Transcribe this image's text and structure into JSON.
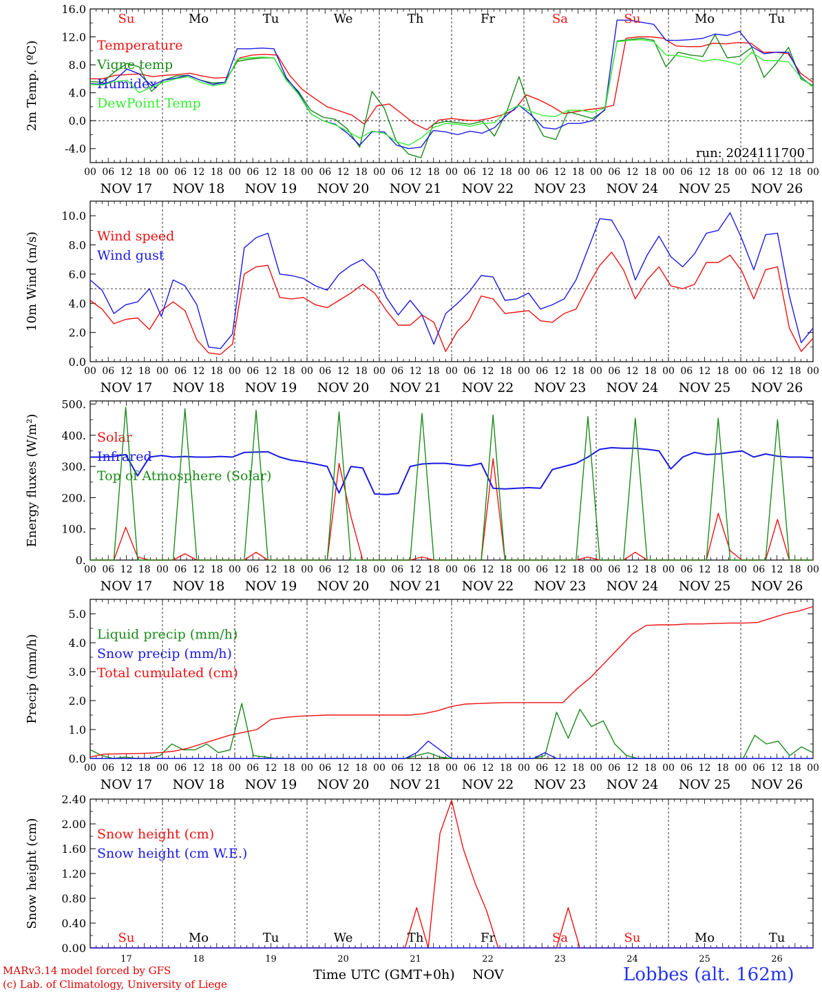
{
  "footer": {
    "model_line": "MARv3.14 model forced by GFS",
    "copyright_line": "(c) Lab. of Climatology, University of Liege",
    "time_label": "Time UTC (GMT+0h)",
    "nov_label": "NOV",
    "station": "Lobbes (alt. 162m)"
  },
  "days": [
    {
      "abbr": "Su",
      "date": "NOV 17",
      "num": "17",
      "weekend": true
    },
    {
      "abbr": "Mo",
      "date": "NOV 18",
      "num": "18",
      "weekend": false
    },
    {
      "abbr": "Tu",
      "date": "NOV 19",
      "num": "19",
      "weekend": false
    },
    {
      "abbr": "We",
      "date": "NOV 20",
      "num": "20",
      "weekend": false
    },
    {
      "abbr": "Th",
      "date": "NOV 21",
      "num": "21",
      "weekend": false
    },
    {
      "abbr": "Fr",
      "date": "NOV 22",
      "num": "22",
      "weekend": false
    },
    {
      "abbr": "Sa",
      "date": "NOV 23",
      "num": "23",
      "weekend": true
    },
    {
      "abbr": "Su",
      "date": "NOV 24",
      "num": "24",
      "weekend": true
    },
    {
      "abbr": "Mo",
      "date": "NOV 25",
      "num": "25",
      "weekend": false
    },
    {
      "abbr": "Tu",
      "date": "NOV 26",
      "num": "26",
      "weekend": false
    }
  ],
  "hour_ticks": [
    "00",
    "06",
    "12",
    "18"
  ],
  "colors": {
    "red": "#ee1111",
    "green": "#1a8a1a",
    "blue": "#1a1ae6",
    "lightgreen": "#33ee33",
    "weekend": "#ee1111",
    "weekday": "#000000"
  },
  "chart_data": [
    {
      "id": "temp",
      "type": "line",
      "ylabel": "2m Temp. (ºC)",
      "ylim": [
        -6,
        16
      ],
      "yticks": [
        -4,
        0,
        4,
        8,
        12,
        16
      ],
      "yticklabels": [
        "-4.0",
        "0.0",
        "4.0",
        "8.0",
        "12.0",
        "16.0"
      ],
      "ref_line": 0,
      "show_days": true,
      "run_label": "run: 2024111700",
      "x_hours_step": 6,
      "series": [
        {
          "name": "Temperature",
          "color": "red",
          "values": [
            6,
            6,
            6.5,
            6.6,
            6.7,
            6.3,
            6.5,
            6.6,
            6.8,
            6.4,
            6.1,
            6.2,
            9,
            9.4,
            9.5,
            9.4,
            6.5,
            4.5,
            3.2,
            2,
            1.4,
            0.8,
            -0.5,
            2.1,
            2.4,
            1,
            -0.4,
            -1.3,
            0.1,
            0.3,
            0.1,
            0,
            0.3,
            0.8,
            1.5,
            3.7,
            3,
            2.1,
            1,
            1.3,
            1.6,
            1.8,
            2.2,
            11.8,
            12,
            12,
            11.8,
            10.7,
            10.6,
            10.6,
            11.1,
            11,
            11.2,
            11.1,
            9.8,
            9.8,
            9.6,
            6.8,
            5.5
          ]
        },
        {
          "name": "Vigne temp",
          "color": "green",
          "values": [
            5.6,
            5.5,
            7,
            8.2,
            7.7,
            4.2,
            5.8,
            6.4,
            6.5,
            5.8,
            5.4,
            5.5,
            8.5,
            8.8,
            9,
            9,
            6,
            4.2,
            1.5,
            0.5,
            0.2,
            -1.2,
            -3.8,
            4.2,
            1.8,
            -3,
            -4.8,
            -5.3,
            -0.5,
            -0.1,
            -0.3,
            -0.5,
            -0.1,
            -2.2,
            1.3,
            6.3,
            1,
            -2.2,
            -2.7,
            1.3,
            0.8,
            0.3,
            1.5,
            11.4,
            11.6,
            11.8,
            11.5,
            7.7,
            9.8,
            9.4,
            9.2,
            12.3,
            9,
            9.2,
            10.5,
            6.2,
            8.2,
            10.5,
            6,
            5
          ]
        },
        {
          "name": "Humidex",
          "color": "blue",
          "values": [
            5.3,
            5.2,
            5.8,
            7.4,
            6.7,
            5,
            5.8,
            6.1,
            6.5,
            5.8,
            5.2,
            5.5,
            10.3,
            10.3,
            10.4,
            10.3,
            6.2,
            4,
            1,
            0,
            -0.5,
            -1.8,
            -3.5,
            -1.6,
            -1.6,
            -3.5,
            -4,
            -3.8,
            -1.4,
            -1.6,
            -2,
            -1.5,
            -1.8,
            -1,
            0.8,
            2.2,
            0.8,
            -1,
            -1.2,
            -0.4,
            -0.4,
            0,
            1.6,
            14.4,
            14.4,
            14.1,
            13.8,
            11.5,
            11.5,
            11.6,
            11.8,
            12.4,
            12.2,
            12.8,
            10.6,
            9.6,
            9.8,
            9.8,
            6.3,
            4.8
          ]
        },
        {
          "name": "DewPoint Temp",
          "color": "lightgreen",
          "values": [
            5.2,
            5.1,
            5.6,
            5.8,
            4,
            4.8,
            5.5,
            6,
            6.3,
            5.5,
            5,
            5.3,
            8.8,
            9,
            9.1,
            9,
            5.8,
            3.8,
            1,
            0,
            -0.6,
            -1.5,
            -2.5,
            -1.5,
            -1.8,
            -3,
            -3.5,
            -2.5,
            -1,
            -0.4,
            -0.5,
            -0.8,
            -0.4,
            -0.3,
            1.4,
            2.2,
            1.3,
            0.7,
            0.6,
            1.5,
            1.5,
            1.2,
            1.8,
            11.3,
            11.5,
            11.6,
            11.3,
            9.4,
            9.3,
            9,
            8.5,
            8.8,
            8.5,
            8,
            9.8,
            8.6,
            8.6,
            8.4,
            6.2,
            4.8
          ]
        }
      ]
    },
    {
      "id": "wind",
      "type": "line",
      "ylabel": "10m Wind (m/s)",
      "ylim": [
        0,
        11
      ],
      "yticks": [
        0,
        2,
        4,
        6,
        8,
        10
      ],
      "yticklabels": [
        "0.0",
        "2.0",
        "4.0",
        "6.0",
        "8.0",
        "10.0"
      ],
      "ref_line": 5,
      "show_days": false,
      "x_hours_step": 6,
      "series": [
        {
          "name": "Wind speed",
          "color": "red",
          "values": [
            4.2,
            3.6,
            2.6,
            2.9,
            3,
            2.2,
            3.5,
            4.1,
            3.5,
            1.5,
            0.6,
            0.5,
            1.2,
            6,
            6.5,
            6.6,
            4.4,
            4.3,
            4.4,
            3.9,
            3.7,
            4.2,
            4.7,
            5.3,
            4.7,
            3.5,
            2.5,
            2.5,
            3.2,
            2.7,
            0.7,
            2.1,
            2.9,
            4.5,
            4.3,
            3.3,
            3.4,
            3.5,
            2.8,
            2.7,
            3.3,
            3.6,
            5.2,
            6.6,
            7.5,
            6.3,
            4.3,
            5.6,
            6.5,
            5.2,
            5,
            5.3,
            6.8,
            6.8,
            7.3,
            6.2,
            4.3,
            6.3,
            6.5,
            2.3,
            0.7,
            1.6
          ]
        },
        {
          "name": "Wind gust",
          "color": "blue",
          "values": [
            5.6,
            4.9,
            3.3,
            3.9,
            4.1,
            5,
            3.1,
            5.6,
            5.2,
            3.9,
            1,
            0.9,
            1.9,
            7.8,
            8.5,
            8.8,
            6,
            5.9,
            5.7,
            5.2,
            4.9,
            6,
            6.6,
            7,
            6.2,
            4.4,
            3.2,
            4.2,
            3.2,
            1.2,
            3.3,
            4,
            4.8,
            5.9,
            5.8,
            4.2,
            4.3,
            4.7,
            3.6,
            3.9,
            4.3,
            5.6,
            7.7,
            9.8,
            9.7,
            8.3,
            5.6,
            7.3,
            8.6,
            7.2,
            6.5,
            7.4,
            8.8,
            9,
            10.2,
            8.4,
            6.3,
            8.7,
            8.8,
            4.5,
            1.3,
            2.3
          ]
        }
      ]
    },
    {
      "id": "energy",
      "type": "line",
      "ylabel": "Energy fluxes (W/m²)",
      "ylim": [
        0,
        510
      ],
      "yticks": [
        0,
        100,
        200,
        300,
        400,
        500
      ],
      "yticklabels": [
        "0.",
        "100.",
        "200.",
        "300.",
        "400.",
        "500."
      ],
      "ref_line": null,
      "show_days": false,
      "x_hours_step": 6,
      "series": [
        {
          "name": "Solar",
          "color": "red",
          "values": [
            0,
            0,
            0,
            105,
            10,
            0,
            0,
            0,
            20,
            0,
            0,
            0,
            0,
            0,
            25,
            0,
            0,
            0,
            0,
            0,
            0,
            310,
            140,
            0,
            0,
            0,
            0,
            0,
            10,
            0,
            0,
            0,
            0,
            0,
            325,
            0,
            0,
            0,
            0,
            0,
            0,
            0,
            10,
            0,
            0,
            0,
            25,
            0,
            0,
            0,
            0,
            0,
            0,
            150,
            30,
            0,
            0,
            0,
            130,
            0,
            0,
            0
          ]
        },
        {
          "name": "Infrared",
          "color": "blue",
          "values": [
            330,
            330,
            332,
            338,
            270,
            330,
            335,
            330,
            332,
            330,
            330,
            332,
            330,
            345,
            346,
            347,
            330,
            320,
            315,
            308,
            300,
            215,
            300,
            295,
            212,
            210,
            214,
            300,
            308,
            310,
            310,
            305,
            302,
            310,
            230,
            228,
            230,
            232,
            230,
            290,
            300,
            310,
            330,
            355,
            360,
            358,
            358,
            355,
            350,
            292,
            330,
            345,
            338,
            340,
            345,
            350,
            330,
            340,
            333,
            330,
            330,
            328
          ]
        },
        {
          "name": "Top of Atmosphere (Solar)",
          "color": "green",
          "values": [
            0,
            0,
            0,
            490,
            0,
            0,
            0,
            0,
            485,
            0,
            0,
            0,
            0,
            0,
            480,
            0,
            0,
            0,
            0,
            0,
            0,
            475,
            0,
            0,
            0,
            0,
            0,
            0,
            470,
            0,
            0,
            0,
            0,
            0,
            465,
            0,
            0,
            0,
            0,
            0,
            0,
            0,
            460,
            0,
            0,
            0,
            455,
            0,
            0,
            0,
            0,
            0,
            0,
            455,
            0,
            0,
            0,
            0,
            450,
            0,
            0,
            0
          ]
        }
      ]
    },
    {
      "id": "precip",
      "type": "line",
      "ylabel": "Precip (mm/h)",
      "ylim": [
        0,
        5.5
      ],
      "yticks": [
        0,
        1,
        2,
        3,
        4,
        5
      ],
      "yticklabels": [
        "0.0",
        "1.0",
        "2.0",
        "3.0",
        "4.0",
        "5.0"
      ],
      "ref_line": null,
      "show_days": false,
      "x_hours_step": 6,
      "series": [
        {
          "name": "Liquid precip (mm/h)",
          "color": "green",
          "values": [
            0.3,
            0.1,
            0,
            0.05,
            0,
            0,
            0.1,
            0.5,
            0.3,
            0.3,
            0.5,
            0.2,
            0.3,
            1.9,
            0.1,
            0.05,
            0,
            0,
            0,
            0,
            0,
            0,
            0,
            0,
            0,
            0,
            0,
            0,
            0.1,
            0.2,
            0.05,
            0,
            0,
            0,
            0,
            0,
            0,
            0,
            0,
            0.1,
            1.6,
            0.7,
            1.7,
            1.1,
            1.3,
            0.5,
            0.1,
            0,
            0,
            0,
            0,
            0,
            0,
            0,
            0,
            0,
            0,
            0.8,
            0.5,
            0.6,
            0.1,
            0.4,
            0.2
          ]
        },
        {
          "name": "Snow precip (mm/h)",
          "color": "blue",
          "values": [
            0,
            0,
            0,
            0,
            0,
            0,
            0,
            0,
            0,
            0,
            0,
            0,
            0,
            0,
            0,
            0,
            0,
            0,
            0,
            0,
            0,
            0,
            0,
            0,
            0,
            0,
            0,
            0,
            0.2,
            0.6,
            0.3,
            0,
            0,
            0,
            0,
            0,
            0,
            0,
            0,
            0.2,
            0,
            0,
            0,
            0,
            0,
            0,
            0,
            0,
            0,
            0,
            0,
            0,
            0,
            0,
            0,
            0,
            0,
            0,
            0,
            0,
            0,
            0,
            0
          ]
        },
        {
          "name": "Total cumulated (cm)",
          "color": "red",
          "values": [
            0.05,
            0.15,
            0.16,
            0.17,
            0.18,
            0.2,
            0.25,
            0.35,
            0.5,
            0.65,
            0.8,
            0.9,
            1,
            1.35,
            1.42,
            1.46,
            1.48,
            1.5,
            1.5,
            1.5,
            1.5,
            1.5,
            1.5,
            1.5,
            1.55,
            1.65,
            1.8,
            1.88,
            1.9,
            1.92,
            1.93,
            1.93,
            1.93,
            1.93,
            1.93,
            2.4,
            2.8,
            3.3,
            3.8,
            4.3,
            4.6,
            4.62,
            4.62,
            4.65,
            4.65,
            4.67,
            4.68,
            4.68,
            4.7,
            4.85,
            5,
            5.1,
            5.25
          ]
        }
      ]
    },
    {
      "id": "snow",
      "type": "line",
      "ylabel": "Snow height (cm)",
      "ylim": [
        0,
        2.4
      ],
      "yticks": [
        0,
        0.4,
        0.8,
        1.2,
        1.6,
        2.0,
        2.4
      ],
      "yticklabels": [
        "0.00",
        "0.40",
        "0.80",
        "1.20",
        "1.60",
        "2.00",
        "2.40"
      ],
      "ref_line": null,
      "show_days": true,
      "x_hours_step": 6,
      "series": [
        {
          "name": "Snow height (cm)",
          "color": "red",
          "values": [
            0,
            0,
            0,
            0,
            0,
            0,
            0,
            0,
            0,
            0,
            0,
            0,
            0,
            0,
            0,
            0,
            0,
            0,
            0,
            0,
            0,
            0,
            0,
            0,
            0,
            0,
            0,
            0,
            0.65,
            0,
            1.85,
            2.38,
            1.6,
            1.05,
            0.6,
            0,
            0,
            0,
            0,
            0,
            0,
            0.65,
            0,
            0,
            0,
            0,
            0,
            0,
            0,
            0,
            0,
            0,
            0,
            0,
            0,
            0,
            0,
            0,
            0,
            0,
            0,
            0,
            0
          ]
        },
        {
          "name": "Snow height (cm W.E.)",
          "color": "blue",
          "values": [
            0,
            0,
            0,
            0,
            0,
            0,
            0,
            0,
            0,
            0,
            0,
            0,
            0,
            0,
            0,
            0,
            0,
            0,
            0,
            0,
            0,
            0,
            0,
            0,
            0,
            0,
            0,
            0,
            0,
            0,
            0,
            0,
            0,
            0,
            0,
            0,
            0,
            0,
            0,
            0,
            0,
            0,
            0,
            0,
            0,
            0,
            0,
            0,
            0,
            0,
            0,
            0,
            0,
            0,
            0,
            0,
            0,
            0,
            0,
            0,
            0,
            0,
            0
          ]
        }
      ]
    }
  ]
}
